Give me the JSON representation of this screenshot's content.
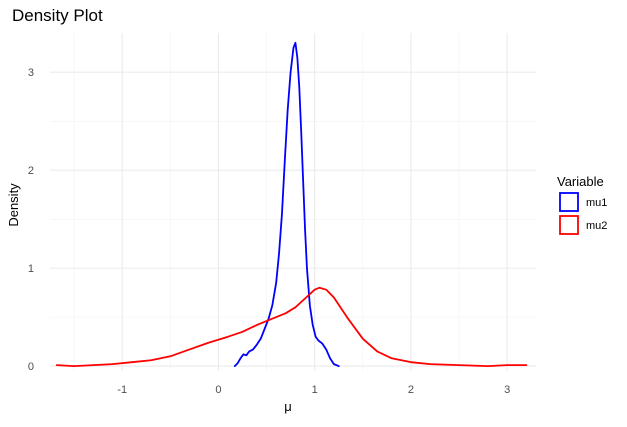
{
  "chart_data": {
    "type": "line",
    "title": "Density Plot",
    "xlabel": "μ",
    "ylabel": "Density",
    "xlim": [
      -1.75,
      3.3
    ],
    "ylim": [
      -0.05,
      3.4
    ],
    "x_ticks": [
      -1,
      0,
      1,
      2,
      3
    ],
    "y_ticks": [
      0,
      1,
      2,
      3
    ],
    "grid": true,
    "legend": {
      "title": "Variable",
      "position": "right"
    },
    "series": [
      {
        "name": "mu1",
        "color": "#0000ff",
        "points": [
          [
            0.17,
            0.0
          ],
          [
            0.2,
            0.03
          ],
          [
            0.23,
            0.08
          ],
          [
            0.26,
            0.12
          ],
          [
            0.29,
            0.11
          ],
          [
            0.32,
            0.15
          ],
          [
            0.36,
            0.17
          ],
          [
            0.4,
            0.22
          ],
          [
            0.44,
            0.28
          ],
          [
            0.48,
            0.38
          ],
          [
            0.52,
            0.48
          ],
          [
            0.56,
            0.62
          ],
          [
            0.6,
            0.85
          ],
          [
            0.63,
            1.15
          ],
          [
            0.66,
            1.55
          ],
          [
            0.69,
            2.1
          ],
          [
            0.72,
            2.62
          ],
          [
            0.75,
            3.0
          ],
          [
            0.78,
            3.25
          ],
          [
            0.8,
            3.3
          ],
          [
            0.82,
            3.15
          ],
          [
            0.84,
            2.85
          ],
          [
            0.86,
            2.4
          ],
          [
            0.88,
            1.9
          ],
          [
            0.9,
            1.4
          ],
          [
            0.92,
            1.0
          ],
          [
            0.95,
            0.62
          ],
          [
            0.98,
            0.42
          ],
          [
            1.01,
            0.3
          ],
          [
            1.04,
            0.26
          ],
          [
            1.08,
            0.23
          ],
          [
            1.12,
            0.17
          ],
          [
            1.16,
            0.08
          ],
          [
            1.2,
            0.02
          ],
          [
            1.25,
            0.0
          ]
        ]
      },
      {
        "name": "mu2",
        "color": "#ff0000",
        "points": [
          [
            -1.68,
            0.01
          ],
          [
            -1.5,
            0.0
          ],
          [
            -1.3,
            0.01
          ],
          [
            -1.1,
            0.02
          ],
          [
            -0.9,
            0.04
          ],
          [
            -0.7,
            0.06
          ],
          [
            -0.5,
            0.1
          ],
          [
            -0.3,
            0.17
          ],
          [
            -0.1,
            0.24
          ],
          [
            0.1,
            0.3
          ],
          [
            0.25,
            0.35
          ],
          [
            0.4,
            0.42
          ],
          [
            0.55,
            0.48
          ],
          [
            0.7,
            0.54
          ],
          [
            0.8,
            0.6
          ],
          [
            0.9,
            0.69
          ],
          [
            1.0,
            0.78
          ],
          [
            1.05,
            0.8
          ],
          [
            1.12,
            0.78
          ],
          [
            1.2,
            0.7
          ],
          [
            1.35,
            0.48
          ],
          [
            1.5,
            0.28
          ],
          [
            1.65,
            0.15
          ],
          [
            1.8,
            0.08
          ],
          [
            2.0,
            0.04
          ],
          [
            2.2,
            0.02
          ],
          [
            2.5,
            0.01
          ],
          [
            2.8,
            0.0
          ],
          [
            3.0,
            0.01
          ],
          [
            3.2,
            0.01
          ]
        ]
      }
    ]
  }
}
